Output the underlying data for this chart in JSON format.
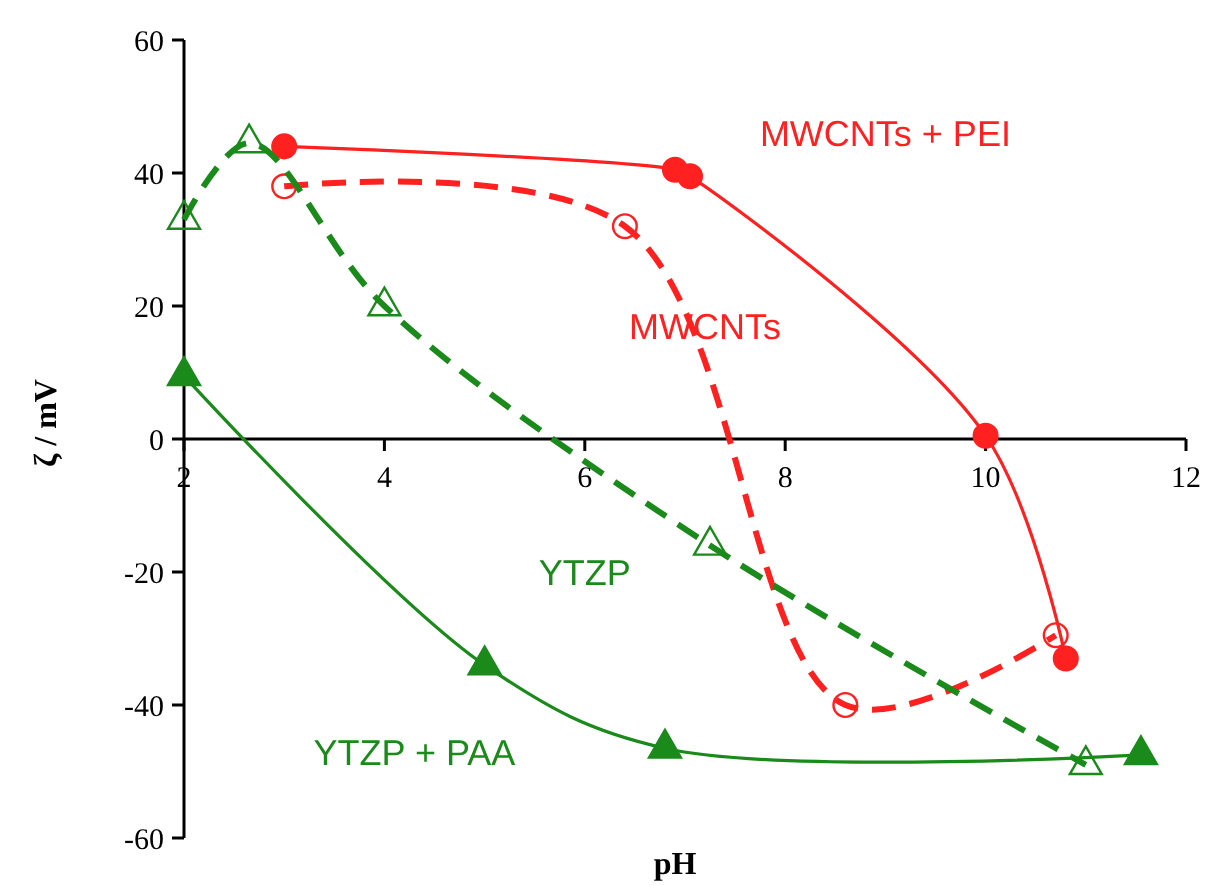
{
  "chart_data": {
    "type": "line",
    "xlabel": "pH",
    "ylabel": "ζ / mV",
    "xlim": [
      2,
      12
    ],
    "ylim": [
      -60,
      60
    ],
    "xticks": [
      2,
      4,
      6,
      8,
      10,
      12
    ],
    "yticks": [
      -60,
      -40,
      -20,
      0,
      20,
      40,
      60
    ],
    "grid": false,
    "series": [
      {
        "name": "MWCNTs + PEI",
        "color": "#ff2020",
        "marker": "circle",
        "line_style": "solid",
        "x": [
          3.0,
          6.9,
          7.05,
          10.0,
          10.8
        ],
        "values": [
          44,
          40.5,
          39.5,
          0.5,
          -33
        ]
      },
      {
        "name": "MWCNTs",
        "color": "#ff2020",
        "marker": "circle",
        "line_style": "dashed",
        "x": [
          3.0,
          6.4,
          8.6,
          10.7
        ],
        "values": [
          38,
          32,
          -40,
          -29.5
        ]
      },
      {
        "name": "YTZP",
        "color": "#1a8a1a",
        "marker": "triangle",
        "line_style": "dashed",
        "x": [
          2.0,
          2.65,
          4.0,
          7.25,
          11.0
        ],
        "values": [
          33,
          44.5,
          20,
          -16,
          -49
        ]
      },
      {
        "name": "YTZP + PAA",
        "color": "#1a8a1a",
        "marker": "triangle",
        "line_style": "solid",
        "x": [
          2.0,
          5.0,
          6.8,
          11.55
        ],
        "values": [
          9.5,
          -34,
          -46.5,
          -47.5
        ]
      }
    ]
  }
}
